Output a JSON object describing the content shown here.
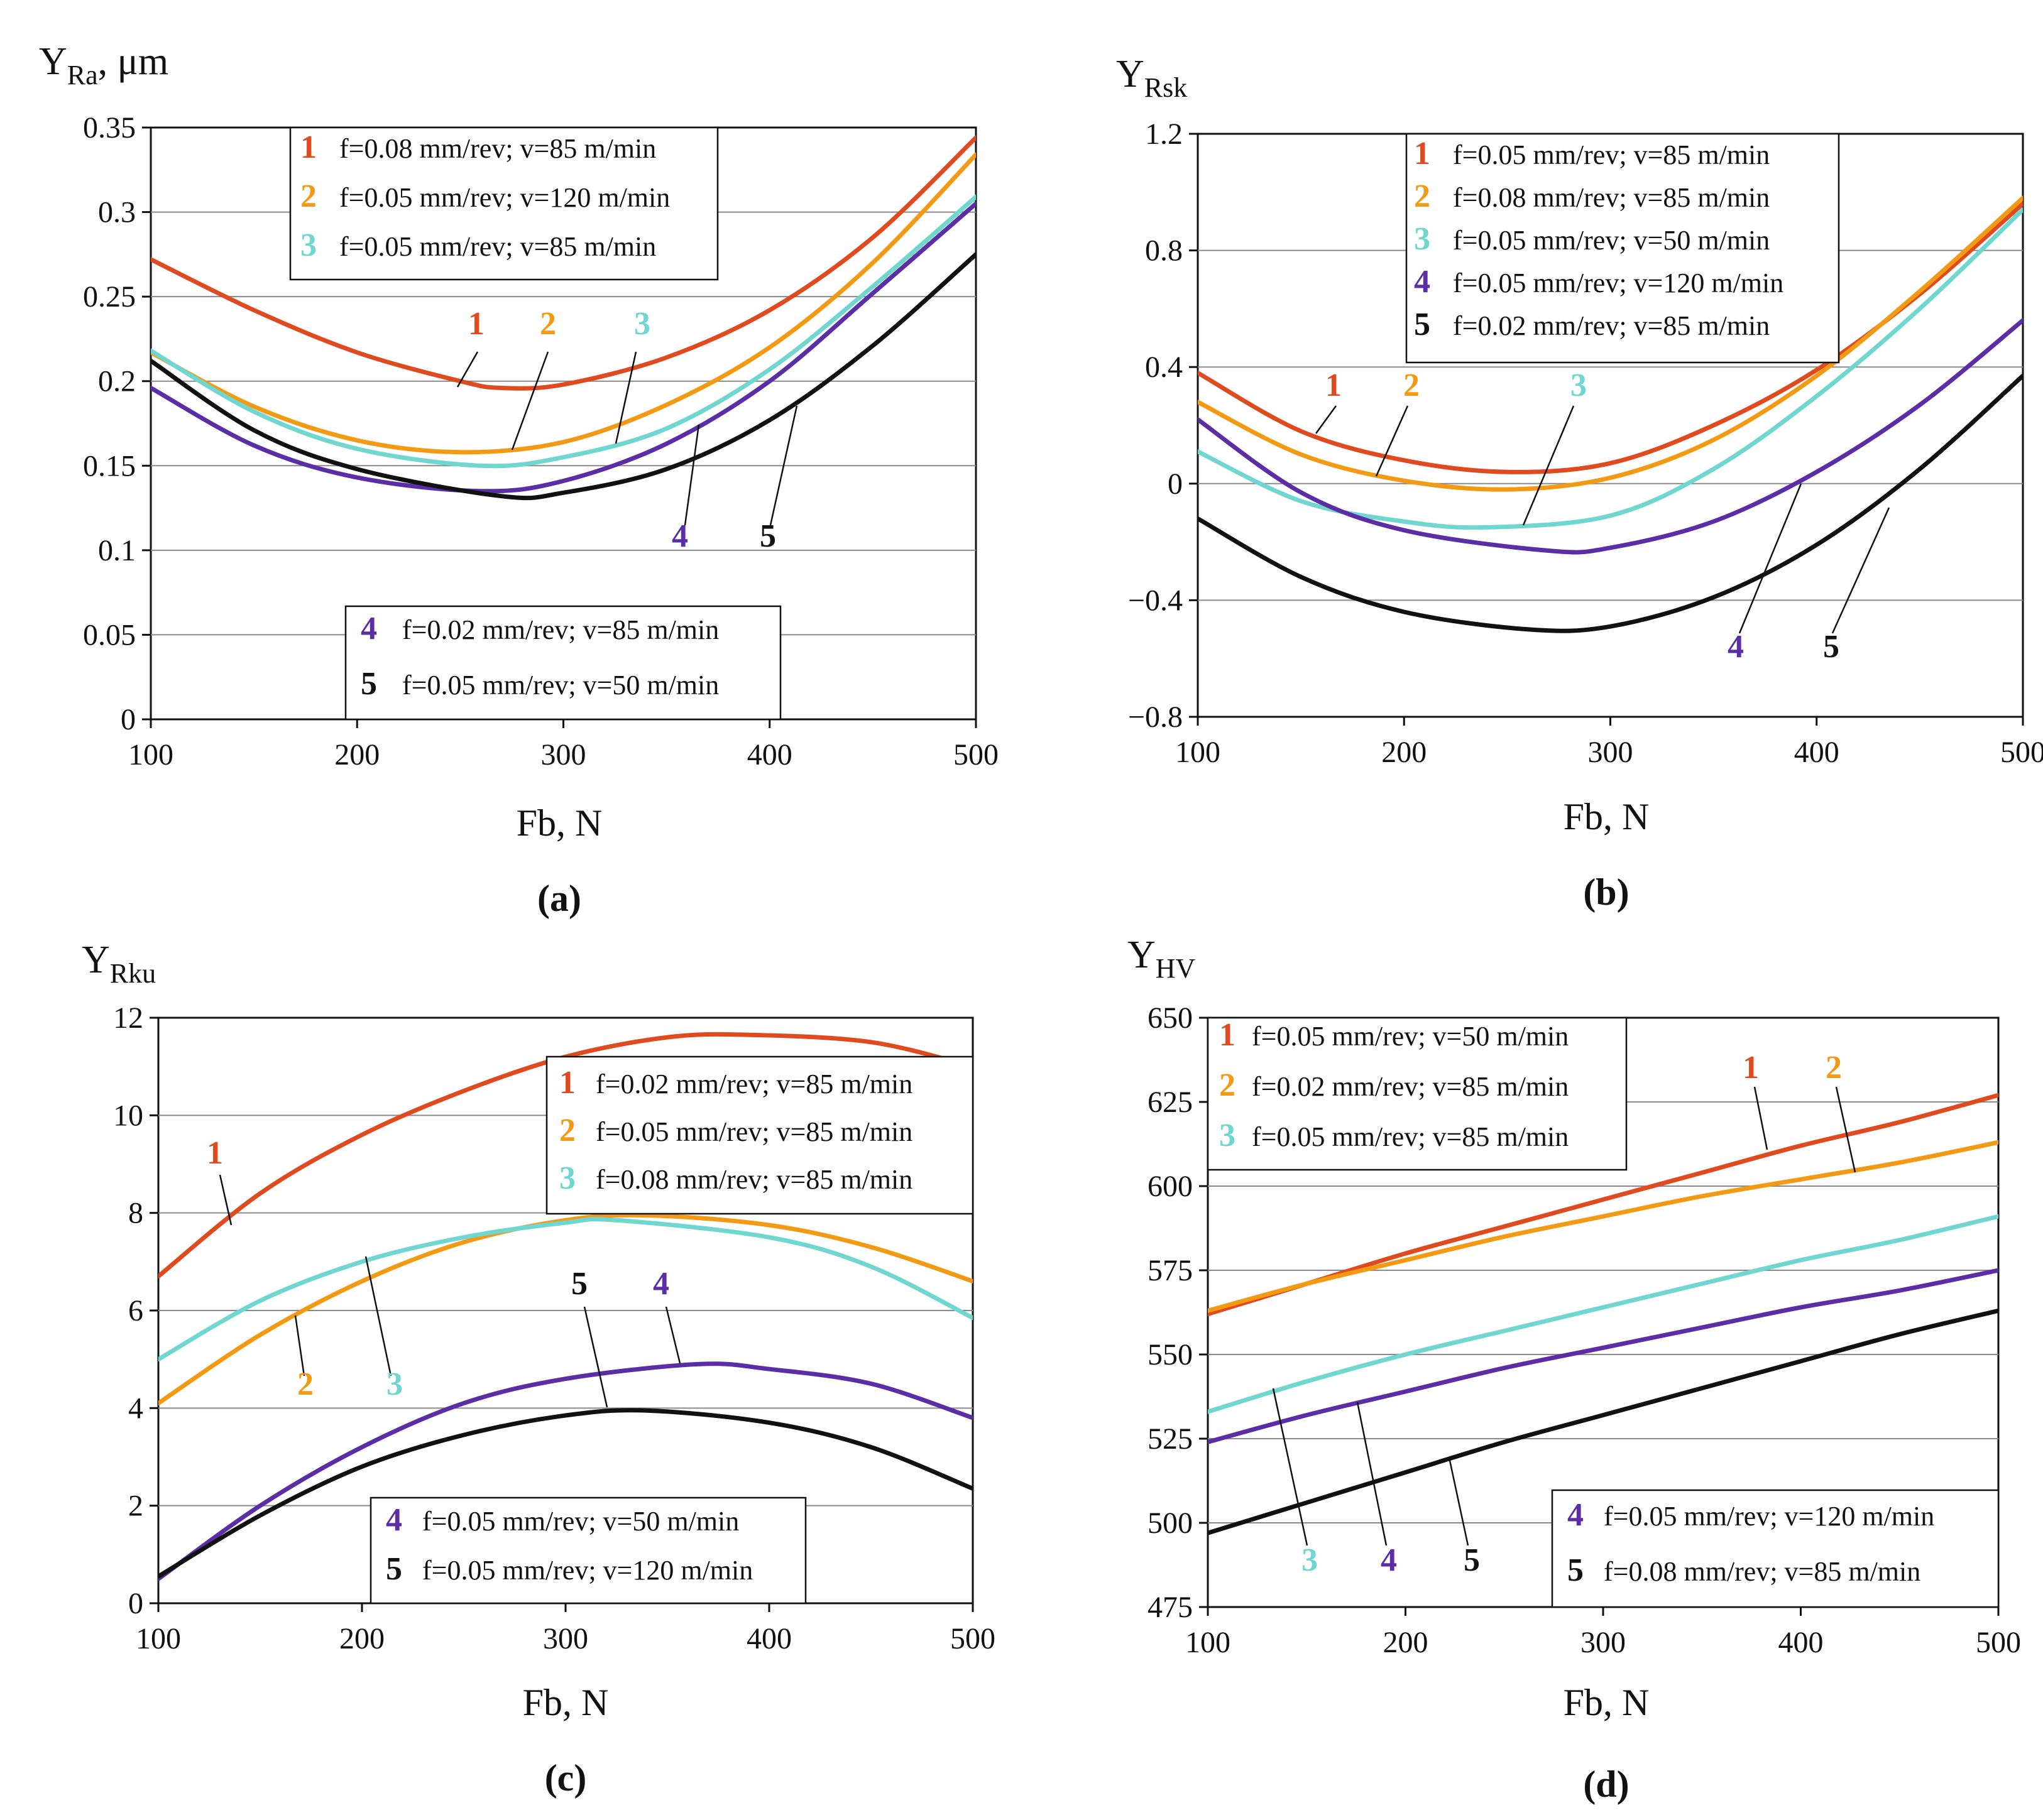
{
  "colors": {
    "1": "#e04a1f",
    "2": "#f39a14",
    "3": "#6fd6d0",
    "4": "#5b2ea6",
    "5": "#111111"
  },
  "chart_data": [
    {
      "type": "line",
      "panel_label": "(a)",
      "ylabel_main": "Y",
      "ylabel_sub": "Ra",
      "ylabel_suffix": ", μm",
      "xlabel": "Fb, N",
      "xlim": [
        100,
        500
      ],
      "ylim": [
        0,
        0.35
      ],
      "xticks": [
        "100",
        "200",
        "300",
        "400",
        "500"
      ],
      "yticks": [
        "0",
        "0.05",
        "0.1",
        "0.15",
        "0.2",
        "0.25",
        "0.3",
        "0.35"
      ],
      "grid": true,
      "series": [
        {
          "id": "1",
          "name": "f=0.08 mm/rev; v=85 m/min",
          "x": [
            100,
            150,
            200,
            250,
            270,
            300,
            350,
            400,
            450,
            500
          ],
          "y": [
            0.272,
            0.242,
            0.217,
            0.2,
            0.196,
            0.198,
            0.214,
            0.242,
            0.285,
            0.344
          ]
        },
        {
          "id": "2",
          "name": "f=0.05 mm/rev; v=120 m/min",
          "x": [
            100,
            150,
            200,
            250,
            300,
            350,
            400,
            450,
            500
          ],
          "y": [
            0.217,
            0.185,
            0.165,
            0.158,
            0.164,
            0.186,
            0.22,
            0.27,
            0.334
          ]
        },
        {
          "id": "3",
          "name": "f=0.05 mm/rev; v=85 m/min",
          "x": [
            100,
            150,
            200,
            260,
            300,
            350,
            400,
            450,
            500
          ],
          "y": [
            0.218,
            0.182,
            0.16,
            0.15,
            0.155,
            0.172,
            0.207,
            0.256,
            0.309
          ]
        },
        {
          "id": "4",
          "name": "f=0.02 mm/rev; v=85 m/min",
          "x": [
            100,
            150,
            200,
            260,
            300,
            350,
            400,
            450,
            500
          ],
          "y": [
            0.196,
            0.162,
            0.143,
            0.135,
            0.141,
            0.163,
            0.2,
            0.252,
            0.305
          ]
        },
        {
          "id": "5",
          "name": "f=0.05 mm/rev; v=50 m/min",
          "x": [
            100,
            150,
            200,
            270,
            300,
            350,
            400,
            450,
            500
          ],
          "y": [
            0.212,
            0.171,
            0.148,
            0.132,
            0.134,
            0.148,
            0.177,
            0.221,
            0.275
          ]
        }
      ]
    },
    {
      "type": "line",
      "panel_label": "(b)",
      "ylabel_main": "Y",
      "ylabel_sub": "Rsk",
      "ylabel_suffix": "",
      "xlabel": "Fb, N",
      "xlim": [
        100,
        500
      ],
      "ylim": [
        -0.8,
        1.2
      ],
      "xticks": [
        "100",
        "200",
        "300",
        "400",
        "500"
      ],
      "yticks": [
        "−0.8",
        "−0.4",
        "0",
        "0.4",
        "0.8",
        "1.2"
      ],
      "grid": true,
      "series": [
        {
          "id": "1",
          "name": "f=0.05 mm/rev; v=85 m/min",
          "x": [
            100,
            150,
            200,
            250,
            300,
            350,
            400,
            450,
            500
          ],
          "y": [
            0.38,
            0.18,
            0.08,
            0.04,
            0.07,
            0.2,
            0.39,
            0.65,
            0.96
          ]
        },
        {
          "id": "2",
          "name": "f=0.08 mm/rev; v=85 m/min",
          "x": [
            100,
            150,
            200,
            250,
            300,
            350,
            400,
            450,
            500
          ],
          "y": [
            0.28,
            0.1,
            0.01,
            -0.02,
            0.02,
            0.15,
            0.37,
            0.66,
            0.98
          ]
        },
        {
          "id": "3",
          "name": "f=0.05 mm/rev; v=50 m/min",
          "x": [
            100,
            150,
            200,
            240,
            300,
            350,
            400,
            450,
            500
          ],
          "y": [
            0.11,
            -0.06,
            -0.13,
            -0.15,
            -0.11,
            0.05,
            0.3,
            0.6,
            0.94
          ]
        },
        {
          "id": "4",
          "name": "f=0.05 mm/rev; v=120 m/min",
          "x": [
            100,
            150,
            200,
            270,
            300,
            350,
            400,
            450,
            500
          ],
          "y": [
            0.22,
            -0.03,
            -0.16,
            -0.23,
            -0.22,
            -0.13,
            0.04,
            0.27,
            0.56
          ]
        },
        {
          "id": "5",
          "name": "f=0.02 mm/rev; v=85 m/min",
          "x": [
            100,
            150,
            200,
            260,
            300,
            350,
            400,
            450,
            500
          ],
          "y": [
            -0.12,
            -0.32,
            -0.44,
            -0.5,
            -0.49,
            -0.39,
            -0.21,
            0.05,
            0.37
          ]
        }
      ]
    },
    {
      "type": "line",
      "panel_label": "(c)",
      "ylabel_main": "Y",
      "ylabel_sub": "Rku",
      "ylabel_suffix": "",
      "xlabel": "Fb, N",
      "xlim": [
        100,
        500
      ],
      "ylim": [
        0,
        12
      ],
      "xticks": [
        "100",
        "200",
        "300",
        "400",
        "500"
      ],
      "yticks": [
        "0",
        "2",
        "4",
        "6",
        "8",
        "10",
        "12"
      ],
      "grid": true,
      "series": [
        {
          "id": "1",
          "name": "f=0.02 mm/rev; v=85 m/min",
          "x": [
            100,
            150,
            200,
            250,
            300,
            350,
            390,
            450,
            500
          ],
          "y": [
            6.7,
            8.4,
            9.6,
            10.5,
            11.2,
            11.6,
            11.65,
            11.5,
            11.0
          ]
        },
        {
          "id": "2",
          "name": "f=0.05 mm/rev; v=85 m/min",
          "x": [
            100,
            150,
            200,
            250,
            300,
            340,
            400,
            450,
            500
          ],
          "y": [
            4.1,
            5.5,
            6.6,
            7.4,
            7.85,
            7.95,
            7.75,
            7.3,
            6.6
          ]
        },
        {
          "id": "3",
          "name": "f=0.08 mm/rev; v=85 m/min",
          "x": [
            100,
            150,
            200,
            250,
            300,
            325,
            400,
            450,
            500
          ],
          "y": [
            5.0,
            6.2,
            7.0,
            7.5,
            7.8,
            7.85,
            7.5,
            6.9,
            5.85
          ]
        },
        {
          "id": "4",
          "name": "f=0.05 mm/rev; v=50 m/min",
          "x": [
            100,
            150,
            200,
            250,
            300,
            365,
            400,
            450,
            500
          ],
          "y": [
            0.5,
            2.0,
            3.2,
            4.1,
            4.6,
            4.9,
            4.8,
            4.5,
            3.8
          ]
        },
        {
          "id": "5",
          "name": "f=0.05 mm/rev; v=120 m/min",
          "x": [
            100,
            150,
            200,
            250,
            300,
            340,
            400,
            450,
            500
          ],
          "y": [
            0.55,
            1.8,
            2.8,
            3.45,
            3.85,
            3.95,
            3.7,
            3.2,
            2.35
          ]
        }
      ]
    },
    {
      "type": "line",
      "panel_label": "(d)",
      "ylabel_main": "Y",
      "ylabel_sub": "HV",
      "ylabel_suffix": "",
      "xlabel": "Fb, N",
      "xlim": [
        100,
        500
      ],
      "ylim": [
        475,
        650
      ],
      "xticks": [
        "100",
        "200",
        "300",
        "400",
        "500"
      ],
      "yticks": [
        "475",
        "500",
        "525",
        "550",
        "575",
        "600",
        "625",
        "650"
      ],
      "grid": true,
      "series": [
        {
          "id": "1",
          "name": "f=0.05 mm/rev; v=50 m/min",
          "x": [
            100,
            150,
            200,
            250,
            300,
            350,
            400,
            450,
            500
          ],
          "y": [
            562,
            571,
            580,
            588,
            596,
            604,
            612,
            619,
            627
          ]
        },
        {
          "id": "2",
          "name": "f=0.02 mm/rev; v=85 m/min",
          "x": [
            100,
            150,
            200,
            250,
            300,
            350,
            400,
            450,
            500
          ],
          "y": [
            563,
            571,
            578,
            585,
            591,
            597,
            602,
            607,
            613
          ]
        },
        {
          "id": "3",
          "name": "f=0.05 mm/rev; v=85 m/min",
          "x": [
            100,
            150,
            200,
            250,
            300,
            350,
            400,
            450,
            500
          ],
          "y": [
            533,
            542,
            550,
            557,
            564,
            571,
            578,
            584,
            591
          ]
        },
        {
          "id": "4",
          "name": "f=0.05 mm/rev; v=120 m/min",
          "x": [
            100,
            150,
            200,
            250,
            300,
            350,
            400,
            450,
            500
          ],
          "y": [
            524,
            532,
            539,
            546,
            552,
            558,
            564,
            569,
            575
          ]
        },
        {
          "id": "5",
          "name": "f=0.08 mm/rev; v=85 m/min",
          "x": [
            100,
            150,
            200,
            250,
            300,
            350,
            400,
            450,
            500
          ],
          "y": [
            497,
            506,
            515,
            524,
            532,
            540,
            548,
            556,
            563
          ]
        }
      ]
    }
  ]
}
